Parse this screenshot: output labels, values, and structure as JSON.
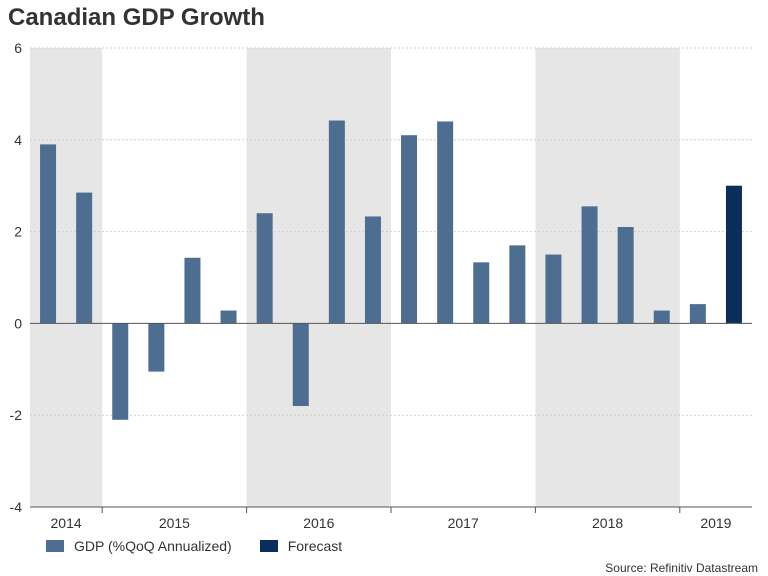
{
  "chart_data": {
    "type": "bar",
    "title": "Canadian GDP Growth",
    "ylim": [
      -4,
      6
    ],
    "yticks": [
      -4,
      -2,
      0,
      2,
      4,
      6
    ],
    "series": [
      {
        "name": "GDP (%QoQ Annualized)",
        "color": "#4d6d91",
        "values": [
          3.9,
          2.85,
          -2.1,
          -1.05,
          1.43,
          0.28,
          2.4,
          -1.8,
          4.42,
          2.33,
          4.1,
          4.4,
          1.33,
          1.7,
          1.5,
          2.55,
          2.1,
          0.28,
          0.42,
          null
        ]
      },
      {
        "name": "Forecast",
        "color": "#0b2e5c",
        "values": [
          null,
          null,
          null,
          null,
          null,
          null,
          null,
          null,
          null,
          null,
          null,
          null,
          null,
          null,
          null,
          null,
          null,
          null,
          null,
          3.0
        ]
      }
    ],
    "year_labels": [
      {
        "label": "2014",
        "start": 0,
        "end": 1
      },
      {
        "label": "2015",
        "start": 2,
        "end": 5
      },
      {
        "label": "2016",
        "start": 6,
        "end": 9
      },
      {
        "label": "2017",
        "start": 10,
        "end": 13
      },
      {
        "label": "2018",
        "start": 14,
        "end": 17
      },
      {
        "label": "2019",
        "start": 18,
        "end": 19
      }
    ],
    "shaded_years": [
      "2014",
      "2016",
      "2018"
    ],
    "source": "Source: Refinitiv Datastream"
  }
}
